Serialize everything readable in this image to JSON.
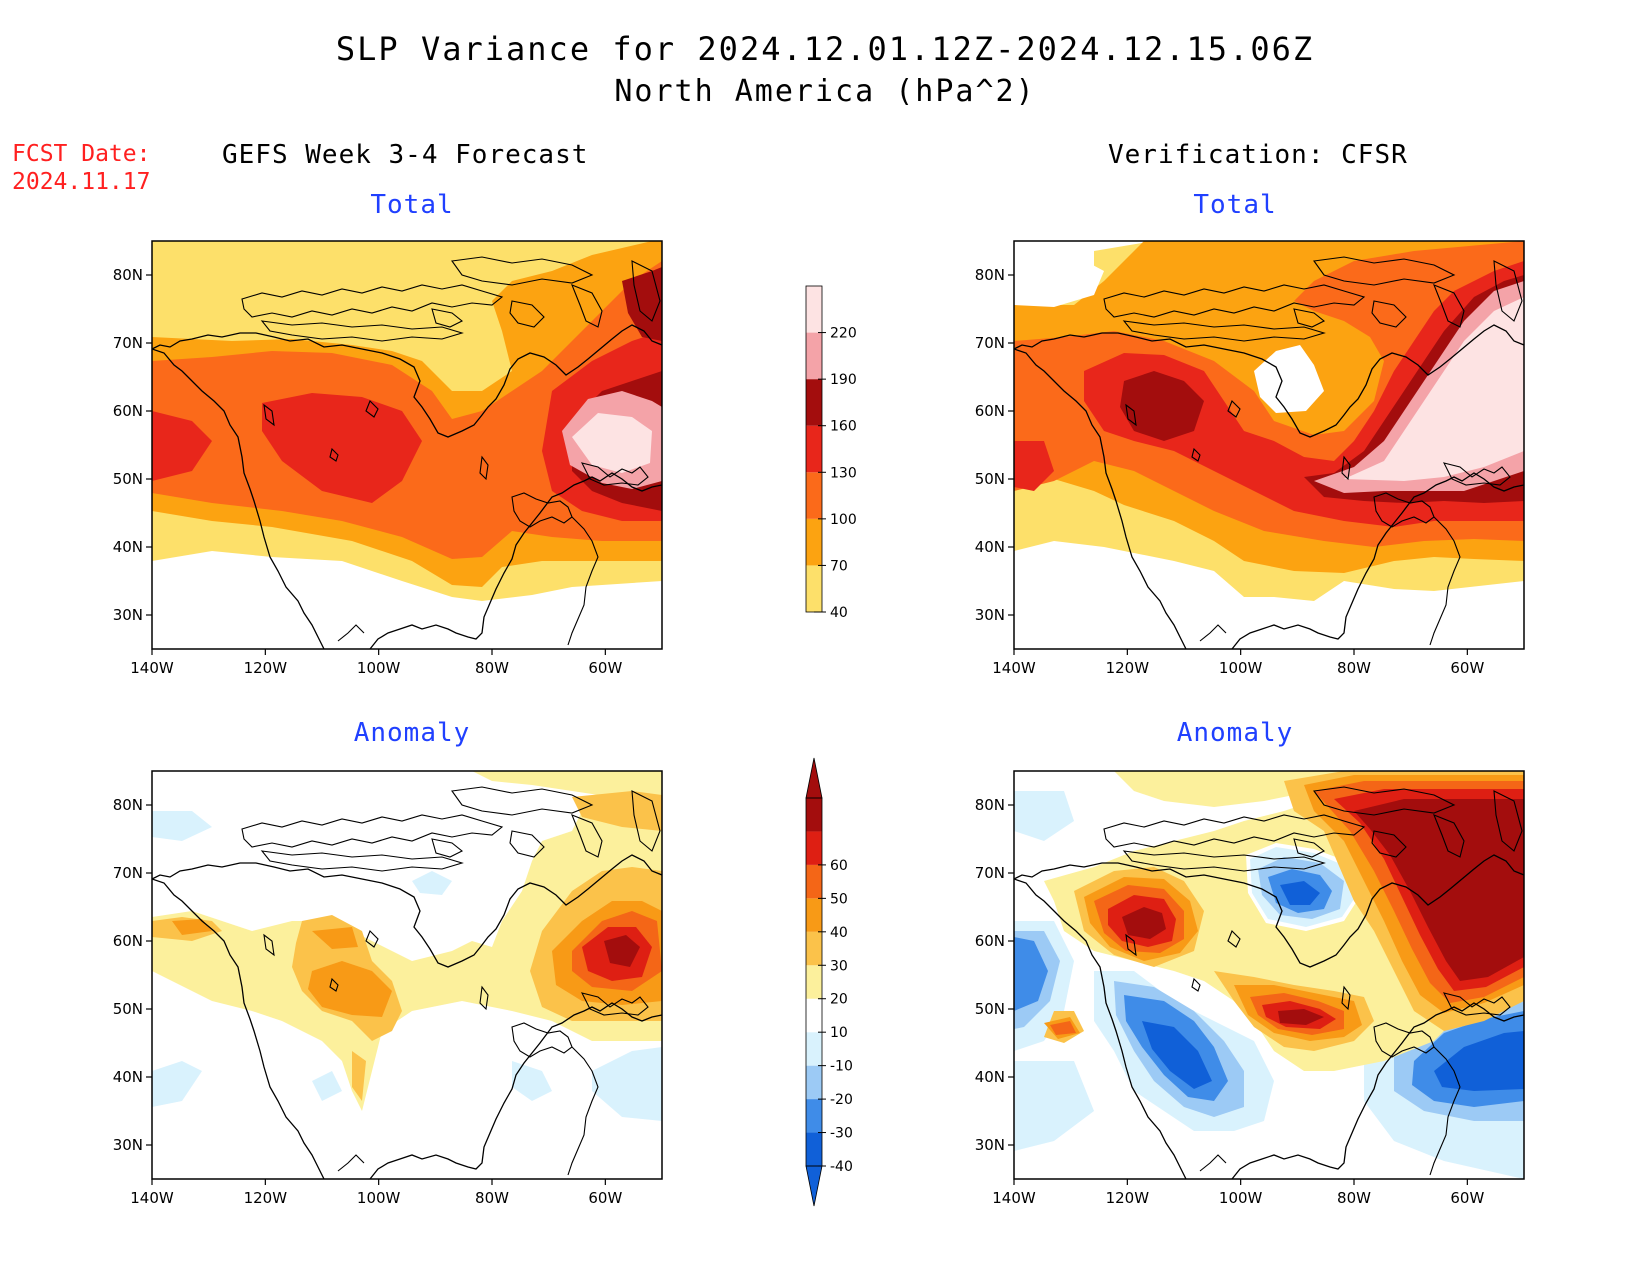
{
  "title_line1": "SLP Variance for 2024.12.01.12Z-2024.12.15.06Z",
  "title_line2": "North America (hPa^2)",
  "fcst_date": "FCST Date:\n2024.11.17",
  "left_heading": "GEFS Week 3-4 Forecast",
  "right_heading": "Verification: CFSR",
  "panels": {
    "forecast_total": {
      "title": "Total"
    },
    "verification_total": {
      "title": "Total"
    },
    "forecast_anomaly": {
      "title": "Anomaly"
    },
    "verification_anomaly": {
      "title": "Anomaly"
    }
  },
  "axes": {
    "lon_labels": [
      "140W",
      "120W",
      "100W",
      "80W",
      "60W"
    ],
    "lat_labels": [
      "30N",
      "40N",
      "50N",
      "60N",
      "70N",
      "80N"
    ],
    "lon_range": [
      -140,
      -50
    ],
    "lat_range": [
      25,
      85
    ]
  },
  "colorbars": {
    "total": {
      "levels": [
        "40",
        "70",
        "100",
        "130",
        "160",
        "190",
        "220"
      ],
      "colors": [
        "#fde06a",
        "#fca311",
        "#fb6a1a",
        "#e8261b",
        "#a30d0d",
        "#f4a3a8",
        "#fde3e3"
      ]
    },
    "anomaly": {
      "levels": [
        "-40",
        "-30",
        "-20",
        "-10",
        "10",
        "20",
        "30",
        "40",
        "50",
        "60"
      ],
      "colors": [
        "#1060d8",
        "#3f8ce8",
        "#9ccaf5",
        "#d9f2fd",
        "#ffffff",
        "#fcf09c",
        "#fbc24a",
        "#f89a16",
        "#f46617",
        "#de1f13",
        "#a30d0d"
      ]
    }
  }
}
